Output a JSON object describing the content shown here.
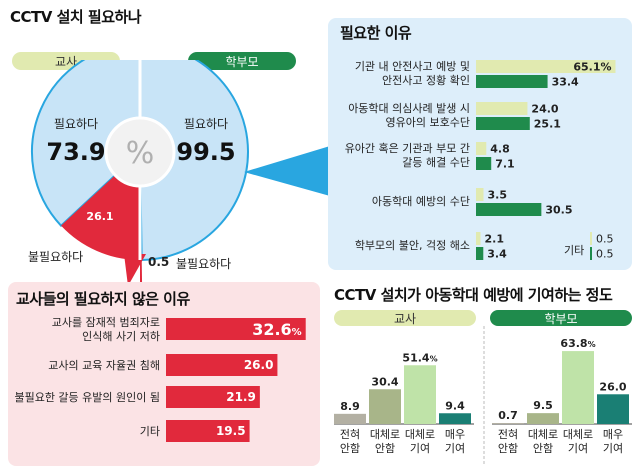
{
  "colors": {
    "teacher": "#c5d57a",
    "teacher_light": "#e1eab0",
    "parent": "#1f8b4c",
    "parent_light": "#bfe3a8",
    "pie_light": "#c8e4f7",
    "pie_border": "#29a6e0",
    "red": "#e1293c",
    "panel_blue": "#ddeefa",
    "panel_pink": "#fbe3e5",
    "dark_teal": "#1a7f74",
    "olive": "#a8b589",
    "gray": "#b3b0a3"
  },
  "pie": {
    "title": "CCTV 설치 필요하나",
    "teacher_pill": "교사",
    "parent_pill": "학부모",
    "center_symbol": "%",
    "teacher": {
      "need_label": "필요하다",
      "need_value": 73.9,
      "need_text": "73.9",
      "no_need_value": 26.1,
      "no_need_text": "26.1",
      "no_need_label": "불필요하다"
    },
    "parent": {
      "need_label": "필요하다",
      "need_value": 99.5,
      "need_text": "99.5",
      "no_need_value": 0.5,
      "no_need_text": "0.5",
      "no_need_label": "불필요하다"
    }
  },
  "reasons": {
    "title": "필요한 이유",
    "max": 70,
    "items": [
      {
        "label_lines": [
          "기관 내 안전사고 예방 및",
          "안전사고 정황 확인"
        ],
        "teacher": 65.1,
        "teacher_text": "65.1%",
        "parent": 33.4,
        "parent_text": "33.4"
      },
      {
        "label_lines": [
          "아동학대 의심사례 발생 시",
          "영유아의 보호수단"
        ],
        "teacher": 24.0,
        "teacher_text": "24.0",
        "parent": 25.1,
        "parent_text": "25.1"
      },
      {
        "label_lines": [
          "유아간 혹은 기관과 부모 간",
          "갈등 해결 수단"
        ],
        "teacher": 4.8,
        "teacher_text": "4.8",
        "parent": 7.1,
        "parent_text": "7.1"
      },
      {
        "label_lines": [
          "아동학대 예방의 수단"
        ],
        "teacher": 3.5,
        "teacher_text": "3.5",
        "parent": 30.5,
        "parent_text": "30.5"
      },
      {
        "label_lines": [
          "학부모의 불안, 걱정 해소"
        ],
        "teacher": 2.1,
        "teacher_text": "2.1",
        "parent": 3.4,
        "parent_text": "3.4"
      }
    ],
    "etc": {
      "label": "기타",
      "teacher_text": "0.5",
      "parent_text": "0.5"
    }
  },
  "not_needed": {
    "title": "교사들의 필요하지 않은 이유",
    "max": 35,
    "items": [
      {
        "label_lines": [
          "교사를 잠재적 범죄자로",
          "인식해 사기 저하"
        ],
        "value": 32.6,
        "value_text": "32.6",
        "unit": "%"
      },
      {
        "label_lines": [
          "교사의 교육 자율권 침해"
        ],
        "value": 26.0,
        "value_text": "26.0",
        "unit": ""
      },
      {
        "label_lines": [
          "불필요한 갈등 유발의 원인이 됨"
        ],
        "value": 21.9,
        "value_text": "21.9",
        "unit": ""
      },
      {
        "label_lines": [
          "기타"
        ],
        "value": 19.5,
        "value_text": "19.5",
        "unit": ""
      }
    ]
  },
  "contribution": {
    "title": "CCTV 설치가 아동학대 예방에 기여하는 정도",
    "teacher_pill": "교사",
    "parent_pill": "학부모",
    "max": 70,
    "categories": [
      [
        "전혀",
        "안함"
      ],
      [
        "대체로",
        "안함"
      ],
      [
        "대체로",
        "기여"
      ],
      [
        "매우",
        "기여"
      ]
    ],
    "teacher": {
      "values": [
        8.9,
        30.4,
        51.4,
        9.4
      ],
      "texts": [
        "8.9",
        "30.4",
        "51.4",
        "9.4"
      ],
      "pct_index": 2
    },
    "parent": {
      "values": [
        0.7,
        9.5,
        63.8,
        26.0
      ],
      "texts": [
        "0.7",
        "9.5",
        "63.8",
        "26.0"
      ],
      "pct_index": 2
    }
  },
  "chart_data": [
    {
      "type": "pie",
      "title": "CCTV 설치 필요하나",
      "series": [
        {
          "name": "교사",
          "categories": [
            "필요하다",
            "불필요하다"
          ],
          "values": [
            73.9,
            26.1
          ]
        },
        {
          "name": "학부모",
          "categories": [
            "필요하다",
            "불필요하다"
          ],
          "values": [
            99.5,
            0.5
          ]
        }
      ]
    },
    {
      "type": "bar",
      "title": "필요한 이유",
      "categories": [
        "기관 내 안전사고 예방 및 안전사고 정황 확인",
        "아동학대 의심사례 발생 시 영유아의 보호수단",
        "유아간 혹은 기관과 부모 간 갈등 해결 수단",
        "아동학대 예방의 수단",
        "학부모의 불안, 걱정 해소",
        "기타"
      ],
      "series": [
        {
          "name": "교사",
          "values": [
            65.1,
            24.0,
            4.8,
            3.5,
            2.1,
            0.5
          ]
        },
        {
          "name": "학부모",
          "values": [
            33.4,
            25.1,
            7.1,
            30.5,
            3.4,
            0.5
          ]
        }
      ]
    },
    {
      "type": "bar",
      "title": "교사들의 필요하지 않은 이유",
      "categories": [
        "교사를 잠재적 범죄자로 인식해 사기 저하",
        "교사의 교육 자율권 침해",
        "불필요한 갈등 유발의 원인이 됨",
        "기타"
      ],
      "values": [
        32.6,
        26.0,
        21.9,
        19.5
      ]
    },
    {
      "type": "bar",
      "title": "CCTV 설치가 아동학대 예방에 기여하는 정도",
      "categories": [
        "전혀 안함",
        "대체로 안함",
        "대체로 기여",
        "매우 기여"
      ],
      "series": [
        {
          "name": "교사",
          "values": [
            8.9,
            30.4,
            51.4,
            9.4
          ]
        },
        {
          "name": "학부모",
          "values": [
            0.7,
            9.5,
            63.8,
            26.0
          ]
        }
      ]
    }
  ]
}
